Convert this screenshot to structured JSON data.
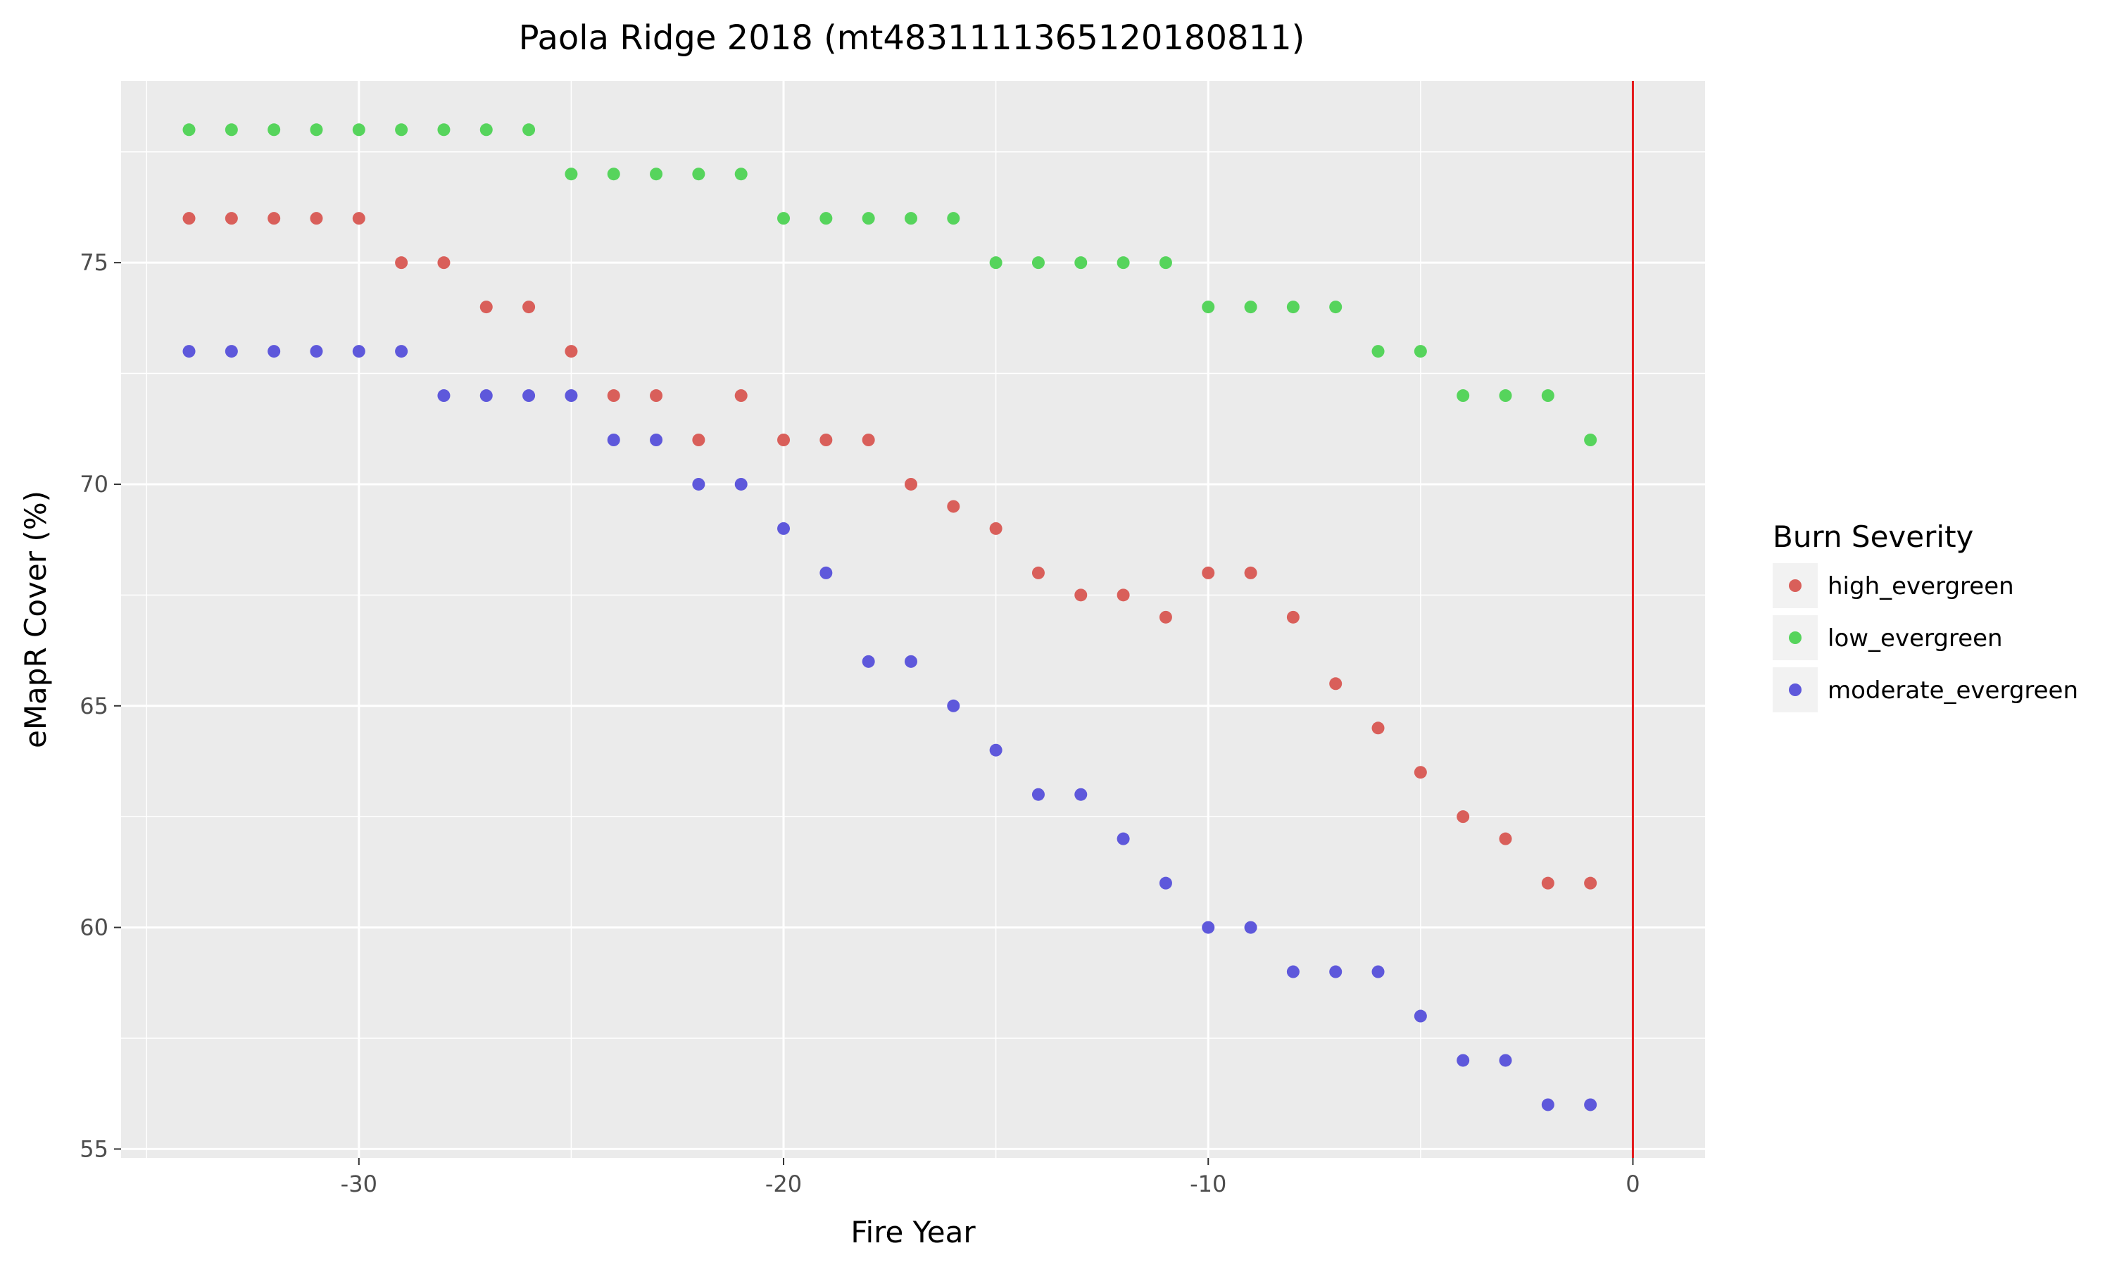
{
  "chart_data": {
    "type": "scatter",
    "title": "Paola Ridge 2018 (mt4831111365120180811)",
    "xlabel": "Fire Year",
    "ylabel": "eMapR Cover (%)",
    "xlim": [
      -35.6,
      1.7
    ],
    "ylim": [
      54.8,
      79.1
    ],
    "x_ticks": [
      -30,
      -20,
      -10,
      0
    ],
    "y_ticks": [
      55,
      60,
      65,
      70,
      75
    ],
    "grid": true,
    "vline": {
      "x": 0,
      "color": "#e41a1c"
    },
    "legend": {
      "title": "Burn Severity",
      "placement": "right"
    },
    "series": [
      {
        "name": "high_evergreen",
        "color": "#d95f5a",
        "x": [
          -34,
          -33,
          -32,
          -31,
          -30,
          -29,
          -28,
          -27,
          -26,
          -25,
          -24,
          -23,
          -22,
          -21,
          -20,
          -19,
          -18,
          -17,
          -16,
          -15,
          -14,
          -13,
          -12,
          -11,
          -10,
          -9,
          -8,
          -7,
          -6,
          -5,
          -4,
          -3,
          -2,
          -1
        ],
        "y": [
          76,
          76,
          76,
          76,
          76,
          75,
          75,
          74,
          74,
          73,
          72,
          72,
          71,
          72,
          71,
          71,
          71,
          70,
          69.5,
          69,
          68,
          67.5,
          67.5,
          67,
          68,
          68,
          67,
          65.5,
          64.5,
          63.5,
          62.5,
          62,
          61,
          61
        ]
      },
      {
        "name": "low_evergreen",
        "color": "#56d45c",
        "x": [
          -34,
          -33,
          -32,
          -31,
          -30,
          -29,
          -28,
          -27,
          -26,
          -25,
          -24,
          -23,
          -22,
          -21,
          -20,
          -19,
          -18,
          -17,
          -16,
          -15,
          -14,
          -13,
          -12,
          -11,
          -10,
          -9,
          -8,
          -7,
          -6,
          -5,
          -4,
          -3,
          -2,
          -1
        ],
        "y": [
          78,
          78,
          78,
          78,
          78,
          78,
          78,
          78,
          78,
          77,
          77,
          77,
          77,
          77,
          76,
          76,
          76,
          76,
          76,
          75,
          75,
          75,
          75,
          75,
          74,
          74,
          74,
          74,
          73,
          73,
          72,
          72,
          72,
          71
        ]
      },
      {
        "name": "moderate_evergreen",
        "color": "#5e58db",
        "x": [
          -34,
          -33,
          -32,
          -31,
          -30,
          -29,
          -28,
          -27,
          -26,
          -25,
          -24,
          -23,
          -22,
          -21,
          -20,
          -19,
          -18,
          -17,
          -16,
          -15,
          -14,
          -13,
          -12,
          -11,
          -10,
          -9,
          -8,
          -7,
          -6,
          -5,
          -4,
          -3,
          -2,
          -1
        ],
        "y": [
          73,
          73,
          73,
          73,
          73,
          73,
          72,
          72,
          72,
          72,
          71,
          71,
          70,
          70,
          69,
          68,
          66,
          66,
          65,
          64,
          63,
          63,
          62,
          61,
          60,
          60,
          59,
          59,
          59,
          58,
          57,
          57,
          56,
          56
        ]
      }
    ]
  }
}
